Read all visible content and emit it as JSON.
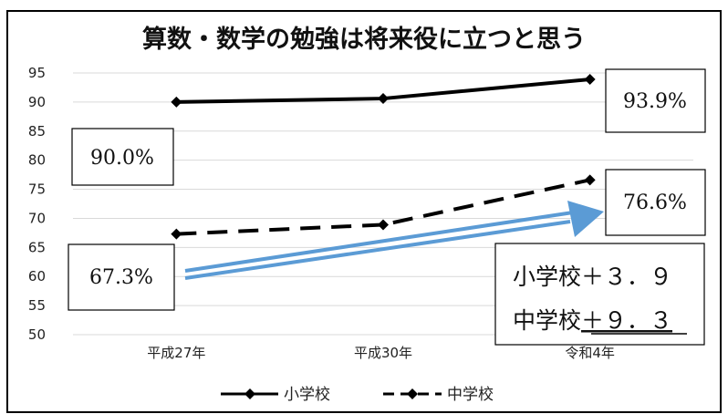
{
  "chart_data": {
    "type": "line",
    "title": "算数・数学の勉強は将来役に立つと思う",
    "categories": [
      "平成27年",
      "平成30年",
      "令和4年"
    ],
    "series": [
      {
        "name": "小学校",
        "style": "solid",
        "values": [
          90.0,
          90.6,
          93.9
        ]
      },
      {
        "name": "中学校",
        "style": "dashed",
        "values": [
          67.3,
          68.9,
          76.6
        ]
      }
    ],
    "ylim": [
      50,
      95
    ],
    "yticks": [
      50,
      55,
      60,
      65,
      70,
      75,
      80,
      85,
      90,
      95
    ],
    "grid": true,
    "legend": "bottom",
    "line_color": "#000000",
    "arrow_color": "#5b9bd5"
  },
  "callouts": {
    "elem_start": "90.0%",
    "elem_end": "93.9%",
    "jh_start": "67.3%",
    "jh_end": "76.6%"
  },
  "diff_box": {
    "elem": "小学校＋３．９",
    "jh_prefix": "中学校",
    "jh_value": "＋９．３"
  }
}
